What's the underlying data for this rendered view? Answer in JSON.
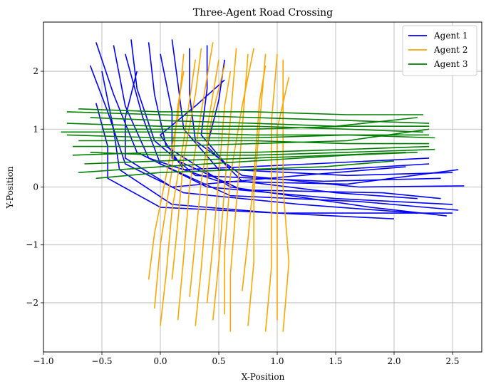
{
  "chart_data": {
    "type": "line",
    "title": "Three-Agent Road Crossing",
    "xlabel": "X-Position",
    "ylabel": "Y-Position",
    "xlim": [
      -1.0,
      2.75
    ],
    "ylim": [
      -2.85,
      2.85
    ],
    "xticks": [
      -1.0,
      -0.5,
      0.0,
      0.5,
      1.0,
      1.5,
      2.0,
      2.5
    ],
    "xtick_labels": [
      "−1.0",
      "−0.5",
      "0.0",
      "0.5",
      "1.0",
      "1.5",
      "2.0",
      "2.5"
    ],
    "yticks": [
      -2,
      -1,
      0,
      1,
      2
    ],
    "ytick_labels": [
      "−2",
      "−1",
      "0",
      "1",
      "2"
    ],
    "grid": true,
    "legend_position": "top-right",
    "series": [
      {
        "name": "Agent 1",
        "color": "#0000ff",
        "trajectories": [
          [
            [
              -0.55,
              2.5
            ],
            [
              -0.4,
              1.6
            ],
            [
              -0.2,
              0.6
            ],
            [
              0.4,
              0.0
            ],
            [
              1.5,
              -0.2
            ],
            [
              2.5,
              -0.3
            ]
          ],
          [
            [
              -0.4,
              2.45
            ],
            [
              -0.3,
              1.4
            ],
            [
              -0.1,
              0.5
            ],
            [
              0.5,
              0.1
            ],
            [
              1.6,
              0.05
            ],
            [
              2.55,
              0.3
            ]
          ],
          [
            [
              -0.6,
              2.1
            ],
            [
              -0.45,
              1.3
            ],
            [
              -0.3,
              0.4
            ],
            [
              0.2,
              -0.1
            ],
            [
              1.2,
              -0.3
            ],
            [
              2.2,
              -0.45
            ]
          ],
          [
            [
              -0.25,
              2.55
            ],
            [
              -0.2,
              1.7
            ],
            [
              -0.05,
              0.8
            ],
            [
              0.3,
              0.2
            ],
            [
              1.4,
              0.1
            ],
            [
              2.4,
              0.15
            ]
          ],
          [
            [
              -0.1,
              2.5
            ],
            [
              -0.05,
              1.6
            ],
            [
              0.05,
              0.7
            ],
            [
              0.6,
              0.0
            ],
            [
              1.8,
              -0.35
            ],
            [
              2.45,
              -0.5
            ]
          ],
          [
            [
              0.1,
              2.55
            ],
            [
              0.15,
              1.8
            ],
            [
              0.2,
              1.0
            ],
            [
              0.5,
              0.3
            ],
            [
              1.5,
              0.3
            ],
            [
              2.3,
              0.4
            ]
          ],
          [
            [
              0.25,
              2.4
            ],
            [
              0.25,
              1.6
            ],
            [
              0.3,
              0.8
            ],
            [
              0.7,
              0.2
            ],
            [
              1.7,
              0.0
            ],
            [
              2.6,
              0.02
            ]
          ],
          [
            [
              0.4,
              2.45
            ],
            [
              0.4,
              1.7
            ],
            [
              0.35,
              0.9
            ],
            [
              0.6,
              0.3
            ],
            [
              1.6,
              0.2
            ],
            [
              2.5,
              0.25
            ]
          ],
          [
            [
              0.55,
              2.2
            ],
            [
              0.5,
              1.5
            ],
            [
              0.4,
              0.7
            ],
            [
              0.7,
              0.1
            ],
            [
              1.5,
              -0.1
            ],
            [
              2.2,
              -0.2
            ]
          ],
          [
            [
              -0.5,
              2.0
            ],
            [
              -0.4,
              1.0
            ],
            [
              -0.35,
              0.3
            ],
            [
              0.1,
              -0.3
            ],
            [
              1.0,
              -0.45
            ],
            [
              2.0,
              -0.55
            ]
          ],
          [
            [
              -0.55,
              1.45
            ],
            [
              -0.45,
              0.7
            ],
            [
              -0.45,
              0.15
            ],
            [
              0.0,
              -0.35
            ],
            [
              1.0,
              -0.45
            ],
            [
              2.5,
              -0.45
            ]
          ],
          [
            [
              0.55,
              1.85
            ],
            [
              0.3,
              1.4
            ],
            [
              0.0,
              0.9
            ],
            [
              0.2,
              0.3
            ],
            [
              1.3,
              0.4
            ],
            [
              2.3,
              0.5
            ]
          ],
          [
            [
              -0.3,
              2.3
            ],
            [
              -0.15,
              1.2
            ],
            [
              0.0,
              0.4
            ],
            [
              0.6,
              -0.15
            ],
            [
              1.7,
              -0.25
            ],
            [
              2.55,
              -0.4
            ]
          ],
          [
            [
              0.0,
              2.3
            ],
            [
              0.1,
              1.3
            ],
            [
              0.1,
              0.5
            ],
            [
              0.7,
              -0.05
            ],
            [
              1.9,
              -0.1
            ],
            [
              2.4,
              -0.2
            ]
          ],
          [
            [
              -0.2,
              2.0
            ],
            [
              -0.3,
              1.2
            ],
            [
              -0.3,
              0.5
            ],
            [
              0.1,
              0.0
            ],
            [
              1.2,
              0.2
            ],
            [
              2.1,
              0.35
            ]
          ]
        ]
      },
      {
        "name": "Agent 2",
        "color": "#ffa500",
        "trajectories": [
          [
            [
              -0.1,
              -1.6
            ],
            [
              -0.05,
              -0.8
            ],
            [
              0.05,
              0.2
            ],
            [
              0.15,
              1.2
            ],
            [
              0.2,
              2.3
            ]
          ],
          [
            [
              0.0,
              -2.4
            ],
            [
              0.05,
              -1.5
            ],
            [
              0.1,
              -0.4
            ],
            [
              0.2,
              0.8
            ],
            [
              0.3,
              2.2
            ]
          ],
          [
            [
              0.15,
              -2.3
            ],
            [
              0.2,
              -1.2
            ],
            [
              0.25,
              0.0
            ],
            [
              0.35,
              1.3
            ],
            [
              0.45,
              2.5
            ]
          ],
          [
            [
              0.3,
              -2.4
            ],
            [
              0.35,
              -1.4
            ],
            [
              0.4,
              -0.2
            ],
            [
              0.4,
              1.0
            ],
            [
              0.5,
              2.2
            ]
          ],
          [
            [
              0.45,
              -2.3
            ],
            [
              0.5,
              -1.3
            ],
            [
              0.55,
              0.0
            ],
            [
              0.6,
              1.2
            ],
            [
              0.65,
              2.4
            ]
          ],
          [
            [
              0.6,
              -2.5
            ],
            [
              0.6,
              -1.5
            ],
            [
              0.65,
              -0.3
            ],
            [
              0.7,
              1.0
            ],
            [
              0.75,
              2.3
            ]
          ],
          [
            [
              0.75,
              -2.4
            ],
            [
              0.8,
              -1.3
            ],
            [
              0.8,
              -0.1
            ],
            [
              0.85,
              1.1
            ],
            [
              0.9,
              2.3
            ]
          ],
          [
            [
              0.9,
              -2.5
            ],
            [
              0.95,
              -1.4
            ],
            [
              0.95,
              -0.2
            ],
            [
              0.95,
              1.1
            ],
            [
              1.0,
              2.3
            ]
          ],
          [
            [
              1.05,
              -2.5
            ],
            [
              1.1,
              -1.3
            ],
            [
              1.05,
              0.0
            ],
            [
              1.05,
              1.2
            ],
            [
              1.05,
              2.2
            ]
          ],
          [
            [
              -0.05,
              -2.1
            ],
            [
              0.0,
              -1.0
            ],
            [
              0.1,
              0.3
            ],
            [
              0.15,
              1.4
            ],
            [
              0.2,
              2.0
            ]
          ],
          [
            [
              0.25,
              -1.9
            ],
            [
              0.3,
              -0.9
            ],
            [
              0.35,
              0.1
            ],
            [
              0.45,
              1.3
            ],
            [
              0.55,
              2.1
            ]
          ],
          [
            [
              0.55,
              -2.2
            ],
            [
              0.55,
              -1.1
            ],
            [
              0.6,
              0.2
            ],
            [
              0.7,
              1.4
            ],
            [
              0.8,
              2.4
            ]
          ],
          [
            [
              0.7,
              -1.8
            ],
            [
              0.75,
              -0.9
            ],
            [
              0.8,
              0.2
            ],
            [
              0.85,
              1.5
            ],
            [
              0.9,
              2.1
            ]
          ],
          [
            [
              1.0,
              -2.3
            ],
            [
              1.0,
              -1.2
            ],
            [
              1.0,
              0.0
            ],
            [
              1.0,
              1.0
            ],
            [
              1.1,
              1.9
            ]
          ],
          [
            [
              0.1,
              -1.6
            ],
            [
              0.15,
              -0.6
            ],
            [
              0.2,
              0.5
            ],
            [
              0.3,
              1.6
            ],
            [
              0.35,
              2.4
            ]
          ],
          [
            [
              0.4,
              -2.0
            ],
            [
              0.45,
              -1.0
            ],
            [
              0.5,
              0.2
            ],
            [
              0.55,
              1.4
            ],
            [
              0.6,
              2.0
            ]
          ]
        ]
      },
      {
        "name": "Agent 3",
        "color": "#008000",
        "trajectories": [
          [
            [
              -0.8,
              1.3
            ],
            [
              0.0,
              1.25
            ],
            [
              0.8,
              1.2
            ],
            [
              1.6,
              1.15
            ],
            [
              2.3,
              1.1
            ]
          ],
          [
            [
              -0.85,
              0.95
            ],
            [
              0.0,
              0.95
            ],
            [
              0.8,
              0.9
            ],
            [
              1.6,
              0.9
            ],
            [
              2.35,
              0.85
            ]
          ],
          [
            [
              -0.75,
              0.55
            ],
            [
              0.0,
              0.6
            ],
            [
              0.8,
              0.6
            ],
            [
              1.6,
              0.65
            ],
            [
              2.3,
              0.7
            ]
          ],
          [
            [
              -0.7,
              0.25
            ],
            [
              0.0,
              0.35
            ],
            [
              0.8,
              0.45
            ],
            [
              1.6,
              0.55
            ],
            [
              2.2,
              0.6
            ]
          ],
          [
            [
              -0.8,
              1.1
            ],
            [
              0.0,
              1.05
            ],
            [
              0.8,
              1.05
            ],
            [
              1.6,
              1.0
            ],
            [
              2.25,
              0.95
            ]
          ],
          [
            [
              -0.7,
              0.8
            ],
            [
              0.0,
              0.8
            ],
            [
              0.8,
              0.8
            ],
            [
              1.6,
              0.75
            ],
            [
              2.3,
              0.75
            ]
          ],
          [
            [
              -0.65,
              0.4
            ],
            [
              0.0,
              0.45
            ],
            [
              0.8,
              0.5
            ],
            [
              1.5,
              0.55
            ],
            [
              2.1,
              0.6
            ]
          ],
          [
            [
              -0.6,
              1.2
            ],
            [
              0.0,
              1.15
            ],
            [
              0.8,
              1.1
            ],
            [
              1.5,
              1.05
            ],
            [
              2.2,
              1.2
            ]
          ],
          [
            [
              -0.75,
              0.7
            ],
            [
              0.0,
              0.7
            ],
            [
              0.8,
              0.75
            ],
            [
              1.6,
              0.8
            ],
            [
              2.3,
              1.0
            ]
          ],
          [
            [
              -0.55,
              0.15
            ],
            [
              0.0,
              0.25
            ],
            [
              0.7,
              0.3
            ],
            [
              1.4,
              0.35
            ],
            [
              2.0,
              0.45
            ]
          ],
          [
            [
              -0.8,
              0.9
            ],
            [
              0.0,
              0.85
            ],
            [
              0.8,
              0.85
            ],
            [
              1.6,
              0.9
            ],
            [
              2.3,
              0.9
            ]
          ],
          [
            [
              -0.7,
              1.35
            ],
            [
              0.0,
              1.3
            ],
            [
              0.8,
              1.3
            ],
            [
              1.6,
              1.25
            ],
            [
              2.25,
              1.25
            ]
          ],
          [
            [
              -0.6,
              0.6
            ],
            [
              0.0,
              0.55
            ],
            [
              0.8,
              0.55
            ],
            [
              1.6,
              0.6
            ],
            [
              2.35,
              0.65
            ]
          ],
          [
            [
              -0.5,
              1.0
            ],
            [
              0.0,
              1.0
            ],
            [
              0.8,
              1.0
            ],
            [
              1.6,
              1.05
            ],
            [
              2.3,
              1.05
            ]
          ]
        ]
      }
    ]
  }
}
